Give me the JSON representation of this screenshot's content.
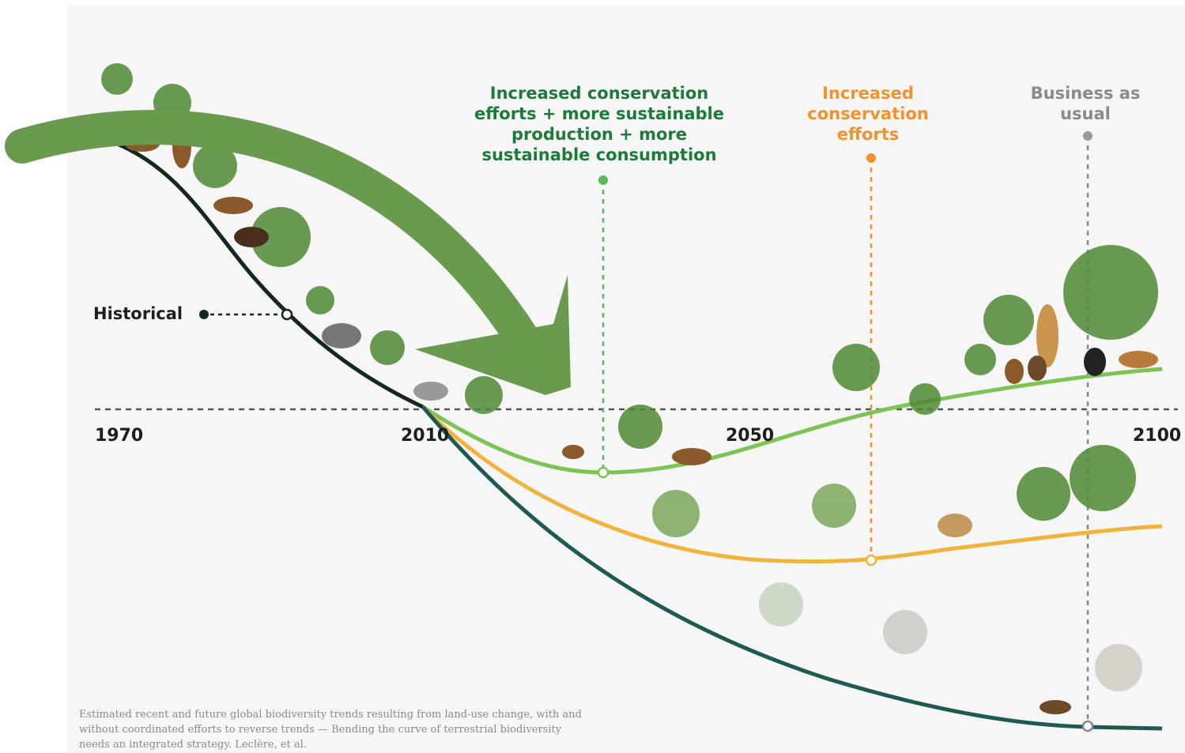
{
  "labels": {
    "sustainable": [
      "Increased conservation",
      "efforts + more sustainable",
      "production + more",
      "sustainable consumption"
    ],
    "conservation": [
      "Increased",
      "conservation",
      "efforts"
    ],
    "business": [
      "Business as",
      "usual"
    ],
    "historical": "Historical"
  },
  "years": [
    "1970",
    "2010",
    "2050",
    "2100"
  ],
  "caption": [
    "Estimated recent and future global biodiversity trends resulting from land-use change, with and",
    "without coordinated efforts to reverse trends — Bending the curve of terrestrial biodiversity",
    "needs an integrated strategy. Leclère, et al."
  ]
}
